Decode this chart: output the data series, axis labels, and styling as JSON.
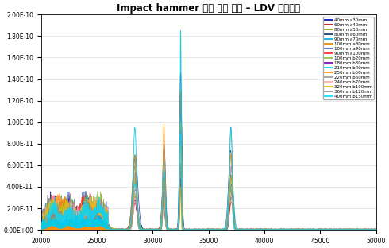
{
  "title": "Impact hammer 타격 높이 변화 – LDV 공명신호",
  "xlim": [
    20000,
    50000
  ],
  "ylim": [
    0,
    2e-10
  ],
  "background": "#ffffff",
  "legend_entries": [
    {
      "label": "40mm a30mm",
      "color": "#0000aa"
    },
    {
      "label": "60mm a40mm",
      "color": "#cc0000"
    },
    {
      "label": "80mm a50mm",
      "color": "#88aa00"
    },
    {
      "label": "80mm a60mm",
      "color": "#003366"
    },
    {
      "label": "90mm a70mm",
      "color": "#00aadd"
    },
    {
      "label": "100mm a80mm",
      "color": "#dd8800"
    },
    {
      "label": "100mm a90mm",
      "color": "#4466bb"
    },
    {
      "label": "90mm a100mm",
      "color": "#ff2222"
    },
    {
      "label": "100mm b20mm",
      "color": "#88bb44"
    },
    {
      "label": "180mm b30mm",
      "color": "#7700aa"
    },
    {
      "label": "210mm b40mm",
      "color": "#00ccee"
    },
    {
      "label": "250mm b50mm",
      "color": "#ff8800"
    },
    {
      "label": "220mm b60mm",
      "color": "#999999"
    },
    {
      "label": "240mm b70mm",
      "color": "#ffaaaa"
    },
    {
      "label": "320mm b100mm",
      "color": "#ddbb00"
    },
    {
      "label": "360mm b120mm",
      "color": "#888888"
    },
    {
      "label": "400mm b150mm",
      "color": "#00ddff"
    }
  ],
  "ytick_labels": [
    "0.00E+00",
    "2.00E-11",
    "4.00E-11",
    "6.00E-11",
    "8.00E-11",
    "1.00E-10",
    "1.20E-10",
    "1.40E-10",
    "1.60E-10",
    "1.80E-10",
    "2.00E-10"
  ],
  "ytick_values": [
    0.0,
    2e-11,
    4e-11,
    6e-11,
    8e-11,
    1e-10,
    1.2e-10,
    1.4e-10,
    1.6e-10,
    1.8e-10,
    2e-10
  ],
  "xtick_values": [
    20000,
    25000,
    30000,
    35000,
    40000,
    45000,
    50000
  ]
}
